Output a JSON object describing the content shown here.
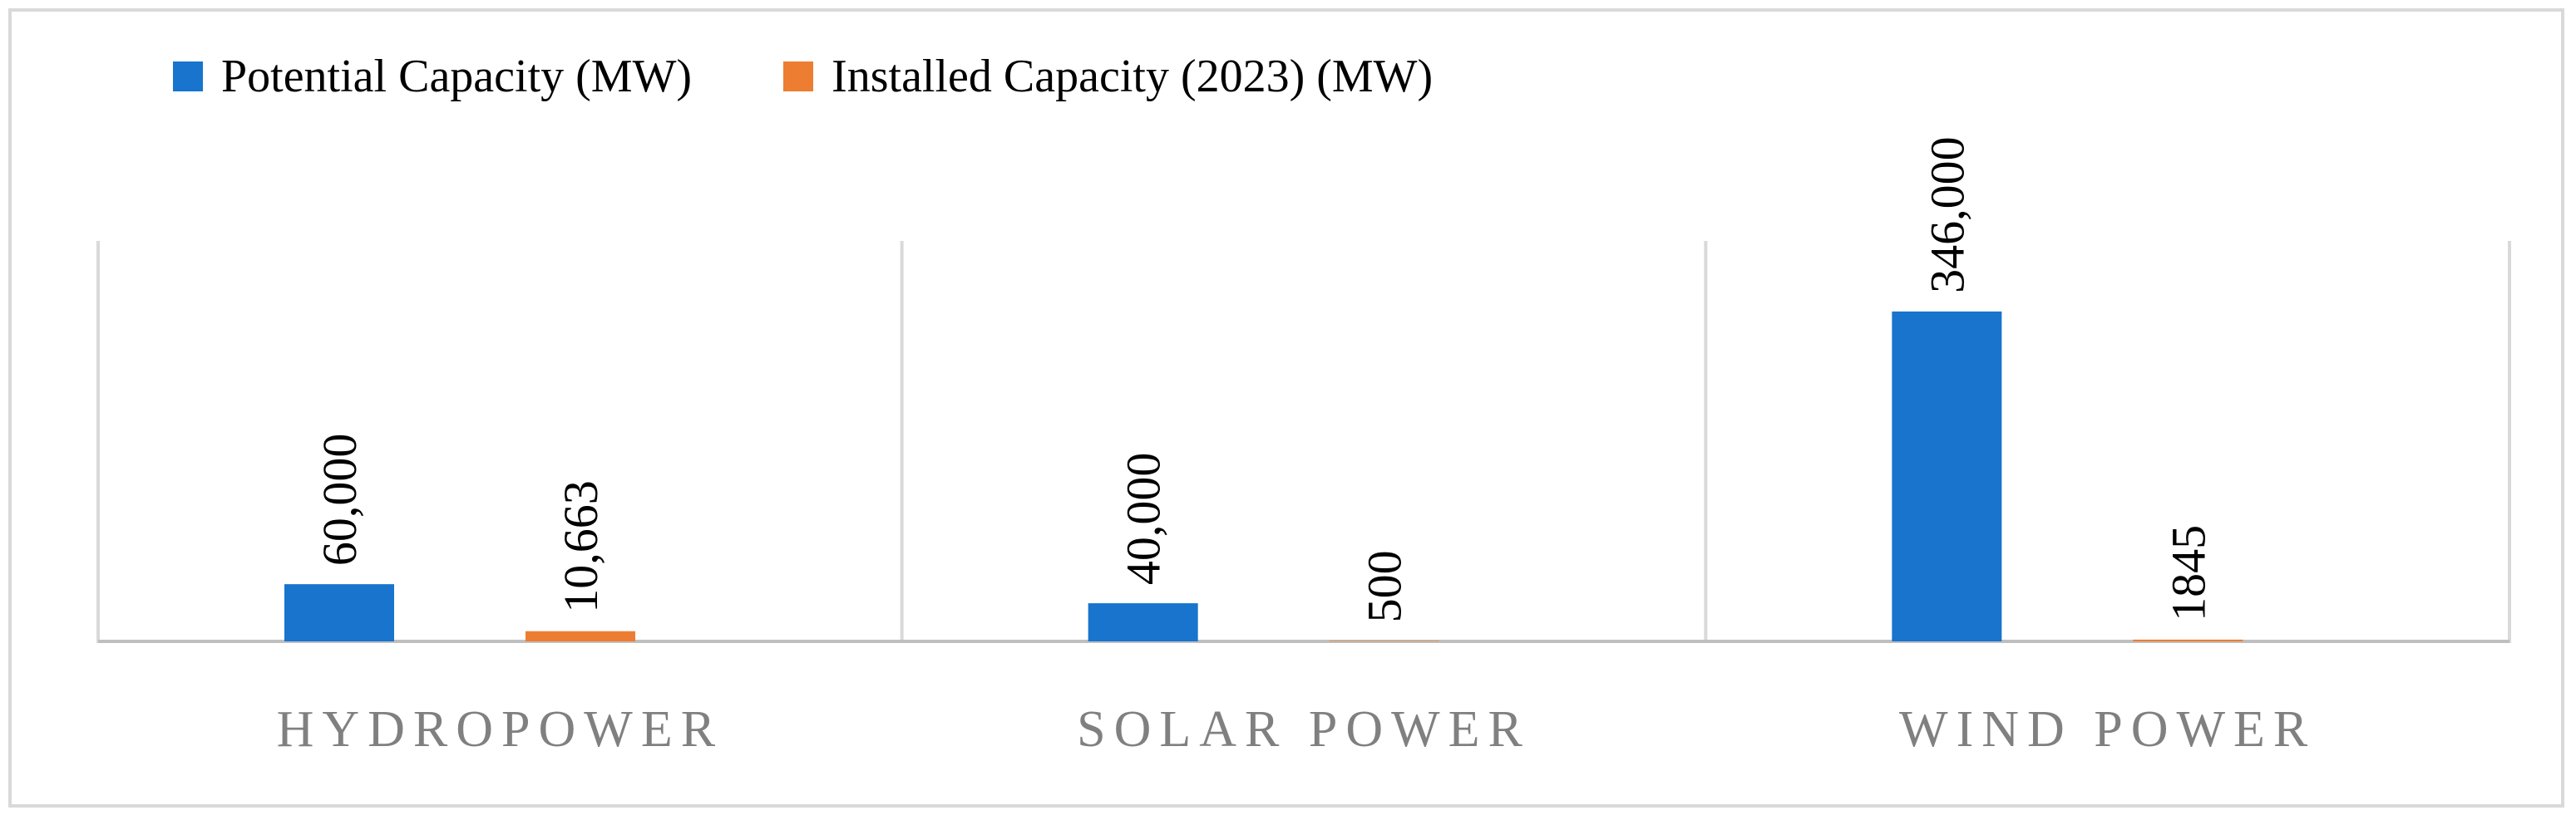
{
  "chart_data": {
    "type": "bar",
    "categories": [
      "HYDROPOWER",
      "SOLAR POWER",
      "WIND POWER"
    ],
    "series": [
      {
        "name": "Potential Capacity (MW)",
        "values": [
          60000,
          40000,
          346000
        ],
        "labels": [
          "60,000",
          "40,000",
          "346,000"
        ],
        "color": "#1874cd"
      },
      {
        "name": "Installed Capacity (2023) (MW)",
        "values": [
          10663,
          500,
          1845
        ],
        "labels": [
          "10,663",
          "500",
          "1845"
        ],
        "color": "#ed7d31"
      }
    ],
    "ylim": [
      0,
      420000
    ],
    "grid": false,
    "legend": "top-left",
    "category_separators": true
  }
}
